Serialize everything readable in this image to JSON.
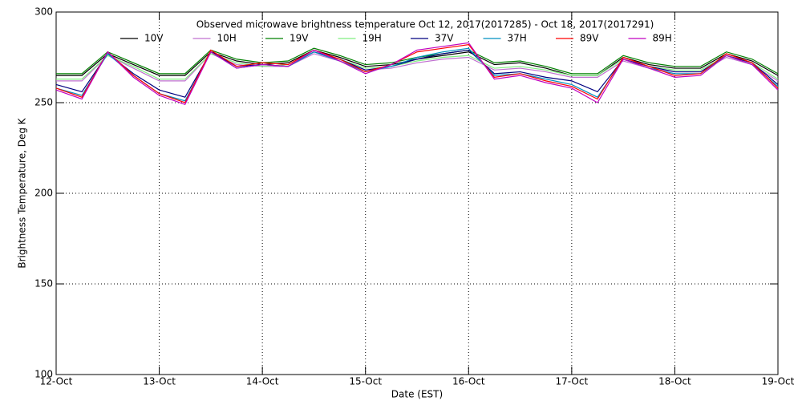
{
  "chart_data": {
    "type": "line",
    "title": "Observed microwave brightness temperature Oct 12, 2017(2017285) - Oct 18, 2017(2017291)",
    "x_label": "Date (EST)",
    "y_label": "Brightness Temperature, Deg K",
    "x": [
      0,
      0.25,
      0.5,
      0.75,
      1,
      1.25,
      1.5,
      1.75,
      2,
      2.25,
      2.5,
      2.75,
      3,
      3.25,
      3.5,
      3.75,
      4,
      4.25,
      4.5,
      4.75,
      5,
      5.25,
      5.5,
      5.75,
      6,
      6.25,
      6.5,
      6.75,
      7
    ],
    "xlim": [
      0,
      7
    ],
    "xticks": [
      {
        "value": 0,
        "label": "12-Oct"
      },
      {
        "value": 1,
        "label": "13-Oct"
      },
      {
        "value": 2,
        "label": "14-Oct"
      },
      {
        "value": 3,
        "label": "15-Oct"
      },
      {
        "value": 4,
        "label": "16-Oct"
      },
      {
        "value": 5,
        "label": "17-Oct"
      },
      {
        "value": 6,
        "label": "18-Oct"
      },
      {
        "value": 7,
        "label": "19-Oct"
      }
    ],
    "ylim": [
      100,
      300
    ],
    "yticks": [
      100,
      150,
      200,
      250,
      300
    ],
    "grid": true,
    "series": [
      {
        "name": "10V",
        "color": "#000000",
        "values": [
          265,
          265,
          277,
          271,
          265,
          265,
          278,
          273,
          271,
          272,
          279,
          275,
          270,
          271,
          274,
          276,
          278,
          271,
          272,
          269,
          265,
          265,
          275,
          271,
          269,
          269,
          277,
          273,
          265
        ]
      },
      {
        "name": "10H",
        "color": "#c070d0",
        "values": [
          262,
          262,
          276,
          269,
          262,
          262,
          277,
          271,
          270,
          270,
          277,
          273,
          268,
          269,
          272,
          274,
          275,
          268,
          269,
          267,
          264,
          264,
          273,
          269,
          267,
          267,
          275,
          271,
          262
        ]
      },
      {
        "name": "19V",
        "color": "#008000",
        "values": [
          266,
          266,
          278,
          272,
          266,
          266,
          279,
          274,
          272,
          273,
          280,
          276,
          271,
          272,
          275,
          277,
          279,
          272,
          273,
          270,
          266,
          266,
          276,
          272,
          270,
          270,
          278,
          274,
          266
        ]
      },
      {
        "name": "19H",
        "color": "#80ee80",
        "values": [
          263,
          263,
          276,
          270,
          263,
          263,
          277,
          272,
          270,
          271,
          278,
          274,
          269,
          270,
          273,
          275,
          276,
          269,
          270,
          268,
          265,
          265,
          274,
          270,
          268,
          268,
          276,
          272,
          263
        ]
      },
      {
        "name": "37V",
        "color": "#000080",
        "values": [
          260,
          256,
          277,
          266,
          257,
          253,
          278,
          270,
          271,
          270,
          278,
          274,
          268,
          270,
          274,
          277,
          279,
          266,
          267,
          264,
          262,
          256,
          274,
          270,
          267,
          267,
          276,
          272,
          260
        ]
      },
      {
        "name": "37H",
        "color": "#0090c0",
        "values": [
          258,
          254,
          277,
          265,
          255,
          251,
          278,
          269,
          271,
          270,
          278,
          273,
          267,
          270,
          275,
          278,
          280,
          265,
          266,
          263,
          260,
          253,
          274,
          269,
          266,
          266,
          276,
          271,
          259
        ]
      },
      {
        "name": "89V",
        "color": "#ff0000",
        "values": [
          258,
          253,
          278,
          265,
          255,
          250,
          279,
          270,
          272,
          271,
          279,
          274,
          267,
          271,
          278,
          280,
          282,
          264,
          266,
          262,
          259,
          252,
          275,
          270,
          265,
          266,
          277,
          272,
          258
        ]
      },
      {
        "name": "89H",
        "color": "#c000c0",
        "values": [
          257,
          252,
          278,
          264,
          254,
          249,
          278,
          269,
          271,
          270,
          279,
          273,
          266,
          271,
          279,
          281,
          283,
          263,
          265,
          261,
          258,
          250,
          274,
          269,
          264,
          265,
          276,
          271,
          257
        ]
      }
    ]
  }
}
